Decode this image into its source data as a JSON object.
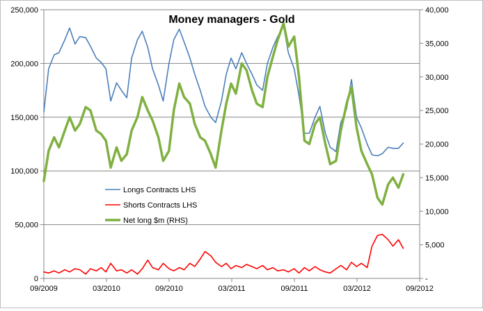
{
  "chart_data": {
    "type": "line",
    "title": "Money managers - Gold",
    "xlabel": "",
    "ylabel": "",
    "x_range": [
      "2009-09",
      "2012-09"
    ],
    "x_ticks": [
      "09/2009",
      "03/2010",
      "09/2010",
      "03/2011",
      "09/2011",
      "03/2012",
      "09/2012"
    ],
    "y_left": {
      "range": [
        0,
        250000
      ],
      "ticks": [
        "0",
        "50,000",
        "100,000",
        "150,000",
        "200,000",
        "250,000"
      ]
    },
    "y_right": {
      "range": [
        0,
        40000
      ],
      "ticks": [
        "-",
        "5,000",
        "10,000",
        "15,000",
        "20,000",
        "25,000",
        "30,000",
        "35,000",
        "40,000"
      ]
    },
    "grid": "horizontal",
    "legend_position": "lower-left",
    "series": [
      {
        "name": "Longs Contracts LHS",
        "axis": "left",
        "color": "#4a7ebb",
        "points": [
          [
            "2009-09-01",
            155000
          ],
          [
            "2009-09-15",
            195000
          ],
          [
            "2009-10-01",
            208000
          ],
          [
            "2009-10-15",
            210000
          ],
          [
            "2009-11-01",
            222000
          ],
          [
            "2009-11-15",
            233000
          ],
          [
            "2009-12-01",
            218000
          ],
          [
            "2009-12-15",
            225000
          ],
          [
            "2010-01-01",
            224000
          ],
          [
            "2010-01-15",
            216000
          ],
          [
            "2010-02-01",
            205000
          ],
          [
            "2010-02-15",
            201000
          ],
          [
            "2010-03-01",
            195000
          ],
          [
            "2010-03-15",
            165000
          ],
          [
            "2010-04-01",
            182000
          ],
          [
            "2010-04-15",
            175000
          ],
          [
            "2010-05-01",
            168000
          ],
          [
            "2010-05-15",
            205000
          ],
          [
            "2010-06-01",
            222000
          ],
          [
            "2010-06-15",
            230000
          ],
          [
            "2010-07-01",
            215000
          ],
          [
            "2010-07-15",
            195000
          ],
          [
            "2010-08-01",
            180000
          ],
          [
            "2010-08-15",
            165000
          ],
          [
            "2010-09-01",
            200000
          ],
          [
            "2010-09-15",
            222000
          ],
          [
            "2010-10-01",
            232000
          ],
          [
            "2010-10-15",
            220000
          ],
          [
            "2010-11-01",
            205000
          ],
          [
            "2010-11-15",
            190000
          ],
          [
            "2010-12-01",
            175000
          ],
          [
            "2010-12-15",
            160000
          ],
          [
            "2011-01-01",
            150000
          ],
          [
            "2011-01-15",
            145000
          ],
          [
            "2011-02-01",
            165000
          ],
          [
            "2011-02-15",
            190000
          ],
          [
            "2011-03-01",
            205000
          ],
          [
            "2011-03-15",
            195000
          ],
          [
            "2011-04-01",
            210000
          ],
          [
            "2011-04-15",
            200000
          ],
          [
            "2011-05-01",
            190000
          ],
          [
            "2011-05-15",
            180000
          ],
          [
            "2011-06-01",
            175000
          ],
          [
            "2011-06-15",
            200000
          ],
          [
            "2011-07-01",
            215000
          ],
          [
            "2011-07-15",
            225000
          ],
          [
            "2011-08-01",
            235000
          ],
          [
            "2011-08-15",
            210000
          ],
          [
            "2011-09-01",
            195000
          ],
          [
            "2011-09-15",
            170000
          ],
          [
            "2011-10-01",
            135000
          ],
          [
            "2011-10-15",
            135000
          ],
          [
            "2011-11-01",
            150000
          ],
          [
            "2011-11-15",
            160000
          ],
          [
            "2011-12-01",
            135000
          ],
          [
            "2011-12-15",
            122000
          ],
          [
            "2012-01-01",
            118000
          ],
          [
            "2012-01-15",
            145000
          ],
          [
            "2012-02-01",
            158000
          ],
          [
            "2012-02-15",
            185000
          ],
          [
            "2012-03-01",
            150000
          ],
          [
            "2012-03-15",
            140000
          ],
          [
            "2012-04-01",
            125000
          ],
          [
            "2012-04-15",
            115000
          ],
          [
            "2012-05-01",
            114000
          ],
          [
            "2012-05-15",
            116000
          ],
          [
            "2012-06-01",
            122000
          ],
          [
            "2012-06-15",
            121000
          ],
          [
            "2012-07-01",
            121000
          ],
          [
            "2012-07-15",
            126000
          ]
        ]
      },
      {
        "name": "Shorts Contracts LHS",
        "axis": "left",
        "color": "#ff0000",
        "points": [
          [
            "2009-09-01",
            6000
          ],
          [
            "2009-09-15",
            5000
          ],
          [
            "2009-10-01",
            7000
          ],
          [
            "2009-10-15",
            5000
          ],
          [
            "2009-11-01",
            8000
          ],
          [
            "2009-11-15",
            6000
          ],
          [
            "2009-12-01",
            9000
          ],
          [
            "2009-12-15",
            8000
          ],
          [
            "2010-01-01",
            4000
          ],
          [
            "2010-01-15",
            9000
          ],
          [
            "2010-02-01",
            7000
          ],
          [
            "2010-02-15",
            10000
          ],
          [
            "2010-03-01",
            6000
          ],
          [
            "2010-03-15",
            14000
          ],
          [
            "2010-04-01",
            7000
          ],
          [
            "2010-04-15",
            8000
          ],
          [
            "2010-05-01",
            5000
          ],
          [
            "2010-05-15",
            8000
          ],
          [
            "2010-06-01",
            4000
          ],
          [
            "2010-06-15",
            9000
          ],
          [
            "2010-07-01",
            17000
          ],
          [
            "2010-07-15",
            10000
          ],
          [
            "2010-08-01",
            8000
          ],
          [
            "2010-08-15",
            14000
          ],
          [
            "2010-09-01",
            9000
          ],
          [
            "2010-09-15",
            7000
          ],
          [
            "2010-10-01",
            10000
          ],
          [
            "2010-10-15",
            8000
          ],
          [
            "2010-11-01",
            14000
          ],
          [
            "2010-11-15",
            11000
          ],
          [
            "2010-12-01",
            18000
          ],
          [
            "2010-12-15",
            25000
          ],
          [
            "2011-01-01",
            21000
          ],
          [
            "2011-01-15",
            15000
          ],
          [
            "2011-02-01",
            11000
          ],
          [
            "2011-02-15",
            14000
          ],
          [
            "2011-03-01",
            9000
          ],
          [
            "2011-03-15",
            12000
          ],
          [
            "2011-04-01",
            10000
          ],
          [
            "2011-04-15",
            13000
          ],
          [
            "2011-05-01",
            11000
          ],
          [
            "2011-05-15",
            9000
          ],
          [
            "2011-06-01",
            12000
          ],
          [
            "2011-06-15",
            8000
          ],
          [
            "2011-07-01",
            10000
          ],
          [
            "2011-07-15",
            7000
          ],
          [
            "2011-08-01",
            8000
          ],
          [
            "2011-08-15",
            6000
          ],
          [
            "2011-09-01",
            9000
          ],
          [
            "2011-09-15",
            5000
          ],
          [
            "2011-10-01",
            10000
          ],
          [
            "2011-10-15",
            7000
          ],
          [
            "2011-11-01",
            11000
          ],
          [
            "2011-11-15",
            8000
          ],
          [
            "2011-12-01",
            6000
          ],
          [
            "2011-12-15",
            5000
          ],
          [
            "2012-01-01",
            9000
          ],
          [
            "2012-01-15",
            12000
          ],
          [
            "2012-02-01",
            8000
          ],
          [
            "2012-02-15",
            15000
          ],
          [
            "2012-03-01",
            11000
          ],
          [
            "2012-03-15",
            14000
          ],
          [
            "2012-04-01",
            10000
          ],
          [
            "2012-04-15",
            30000
          ],
          [
            "2012-05-01",
            40000
          ],
          [
            "2012-05-15",
            41000
          ],
          [
            "2012-06-01",
            36000
          ],
          [
            "2012-06-15",
            30000
          ],
          [
            "2012-07-01",
            36000
          ],
          [
            "2012-07-15",
            28000
          ]
        ]
      },
      {
        "name": "Net long $m (RHS)",
        "axis": "right",
        "color": "#7fb041",
        "points": [
          [
            "2009-09-01",
            14500
          ],
          [
            "2009-09-15",
            19000
          ],
          [
            "2009-10-01",
            21000
          ],
          [
            "2009-10-15",
            19500
          ],
          [
            "2009-11-01",
            22000
          ],
          [
            "2009-11-15",
            24000
          ],
          [
            "2009-12-01",
            22000
          ],
          [
            "2009-12-15",
            23000
          ],
          [
            "2010-01-01",
            25500
          ],
          [
            "2010-01-15",
            25000
          ],
          [
            "2010-02-01",
            22000
          ],
          [
            "2010-02-15",
            21500
          ],
          [
            "2010-03-01",
            20500
          ],
          [
            "2010-03-15",
            16500
          ],
          [
            "2010-04-01",
            19500
          ],
          [
            "2010-04-15",
            17500
          ],
          [
            "2010-05-01",
            18500
          ],
          [
            "2010-05-15",
            22000
          ],
          [
            "2010-06-01",
            24000
          ],
          [
            "2010-06-15",
            27000
          ],
          [
            "2010-07-01",
            25000
          ],
          [
            "2010-07-15",
            23500
          ],
          [
            "2010-08-01",
            21000
          ],
          [
            "2010-08-15",
            17500
          ],
          [
            "2010-09-01",
            19000
          ],
          [
            "2010-09-15",
            25000
          ],
          [
            "2010-10-01",
            29000
          ],
          [
            "2010-10-15",
            27000
          ],
          [
            "2010-11-01",
            26000
          ],
          [
            "2010-11-15",
            23000
          ],
          [
            "2010-12-01",
            21000
          ],
          [
            "2010-12-15",
            20500
          ],
          [
            "2011-01-01",
            18500
          ],
          [
            "2011-01-15",
            16500
          ],
          [
            "2011-02-01",
            22000
          ],
          [
            "2011-02-15",
            26000
          ],
          [
            "2011-03-01",
            29000
          ],
          [
            "2011-03-15",
            27500
          ],
          [
            "2011-04-01",
            32000
          ],
          [
            "2011-04-15",
            31000
          ],
          [
            "2011-05-01",
            28000
          ],
          [
            "2011-05-15",
            26000
          ],
          [
            "2011-06-01",
            25500
          ],
          [
            "2011-06-15",
            30000
          ],
          [
            "2011-07-01",
            33000
          ],
          [
            "2011-07-15",
            35500
          ],
          [
            "2011-08-01",
            38000
          ],
          [
            "2011-08-15",
            34500
          ],
          [
            "2011-09-01",
            36000
          ],
          [
            "2011-09-15",
            30000
          ],
          [
            "2011-10-01",
            20500
          ],
          [
            "2011-10-15",
            20000
          ],
          [
            "2011-11-01",
            23000
          ],
          [
            "2011-11-15",
            24000
          ],
          [
            "2011-12-01",
            20000
          ],
          [
            "2011-12-15",
            17000
          ],
          [
            "2012-01-01",
            17500
          ],
          [
            "2012-01-15",
            22000
          ],
          [
            "2012-02-01",
            26000
          ],
          [
            "2012-02-15",
            28500
          ],
          [
            "2012-03-01",
            22500
          ],
          [
            "2012-03-15",
            19000
          ],
          [
            "2012-04-01",
            17000
          ],
          [
            "2012-04-15",
            15500
          ],
          [
            "2012-05-01",
            12000
          ],
          [
            "2012-05-15",
            11000
          ],
          [
            "2012-06-01",
            14000
          ],
          [
            "2012-06-15",
            15000
          ],
          [
            "2012-07-01",
            13500
          ],
          [
            "2012-07-15",
            15500
          ]
        ]
      }
    ]
  }
}
